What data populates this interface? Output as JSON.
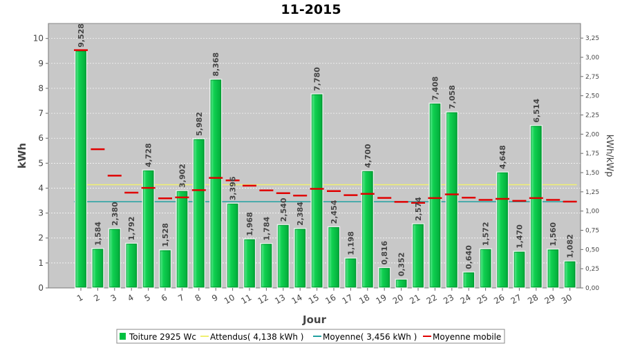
{
  "chart_data": {
    "type": "bar",
    "title": "11-2015",
    "xlabel": "Jour",
    "ylabel": "kWh",
    "y2label": "kWh/kWp",
    "ylim": [
      0,
      10.6
    ],
    "y2lim": [
      0,
      3.44
    ],
    "yticks": [
      0,
      1,
      2,
      3,
      4,
      5,
      6,
      7,
      8,
      9,
      10
    ],
    "y2ticks": [
      "0,00",
      "0,25",
      "0,50",
      "0,75",
      "1,00",
      "1,25",
      "1,50",
      "1,75",
      "2,00",
      "2,25",
      "2,50",
      "2,75",
      "3,00",
      "3,25"
    ],
    "grid": true,
    "legend_position": "bottom",
    "categories": [
      "1",
      "2",
      "3",
      "4",
      "5",
      "6",
      "7",
      "8",
      "9",
      "10",
      "11",
      "12",
      "13",
      "14",
      "15",
      "16",
      "17",
      "18",
      "19",
      "20",
      "21",
      "22",
      "23",
      "24",
      "25",
      "26",
      "27",
      "28",
      "29",
      "30"
    ],
    "series": [
      {
        "name": "Toiture 2925 Wc",
        "kind": "bar",
        "color": "#00c040",
        "values": [
          9.528,
          1.584,
          2.38,
          1.792,
          4.728,
          1.528,
          3.902,
          5.982,
          8.368,
          3.396,
          1.968,
          1.784,
          2.54,
          2.384,
          7.78,
          2.454,
          1.198,
          4.7,
          0.816,
          0.352,
          2.574,
          7.408,
          7.058,
          0.64,
          1.572,
          4.648,
          1.47,
          6.514,
          1.56,
          1.082
        ],
        "labels": [
          "9,528",
          "1,584",
          "2,380",
          "1,792",
          "4,728",
          "1,528",
          "3,902",
          "5,982",
          "8,368",
          "3,396",
          "1,968",
          "1,784",
          "2,540",
          "2,384",
          "7,780",
          "2,454",
          "1,198",
          "4,700",
          "0,816",
          "0,352",
          "2,574",
          "7,408",
          "7,058",
          "0,640",
          "1,572",
          "4,648",
          "1,470",
          "6,514",
          "1,560",
          "1,082"
        ]
      },
      {
        "name": "Attendus( 4,138 kWh )",
        "kind": "hline",
        "color": "#f0f070",
        "value": 4.138
      },
      {
        "name": "Moyenne( 3,456 kWh )",
        "kind": "hline",
        "color": "#20a0a0",
        "value": 3.456
      },
      {
        "name": "Moyenne mobile",
        "kind": "step",
        "color": "#e00000",
        "values": [
          9.53,
          5.56,
          4.5,
          3.82,
          4.01,
          3.59,
          3.63,
          3.92,
          4.41,
          4.31,
          4.1,
          3.91,
          3.8,
          3.7,
          3.97,
          3.88,
          3.72,
          3.77,
          3.61,
          3.45,
          3.41,
          3.6,
          3.75,
          3.62,
          3.53,
          3.57,
          3.49,
          3.6,
          3.53,
          3.46
        ]
      }
    ]
  }
}
